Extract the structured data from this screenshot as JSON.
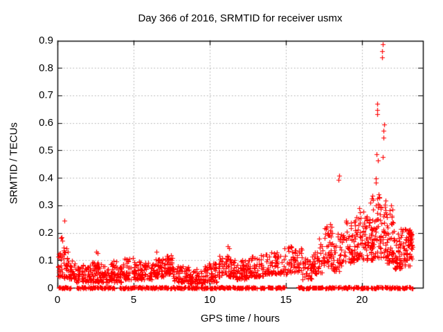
{
  "title": "Day 366 of 2016, SRMTID for receiver usmx",
  "xlabel": "GPS time / hours",
  "ylabel": "SRMTID / TECUs",
  "chart_data": {
    "type": "scatter",
    "title": "Day 366 of 2016, SRMTID for receiver usmx",
    "xlabel": "GPS time / hours",
    "ylabel": "SRMTID / TECUs",
    "series_name": "SRMTID",
    "marker": "plus-cross",
    "marker_color": "#ff0000",
    "marker_size_px": 7,
    "grid": "dotted",
    "grid_color": "#a8a8a8",
    "border_color": "#000000",
    "legend": "none",
    "xlim": [
      0,
      24
    ],
    "ylim": [
      0,
      0.9
    ],
    "xticks": [
      0,
      5,
      10,
      15,
      20
    ],
    "xtick_labels": [
      "0",
      "5",
      "10",
      "15",
      "20"
    ],
    "yticks": [
      0,
      0.1,
      0.2,
      0.3,
      0.4,
      0.5,
      0.6,
      0.7,
      0.8,
      0.9
    ],
    "ytick_labels": [
      "0",
      "0.1",
      "0.2",
      "0.3",
      "0.4",
      "0.5",
      "0.6",
      "0.7",
      "0.8",
      "0.9"
    ],
    "seed": 20163661,
    "highlight_points": [
      [
        0.45,
        0.245
      ],
      [
        0.28,
        0.185
      ],
      [
        0.33,
        0.172
      ],
      [
        2.55,
        0.132
      ],
      [
        2.62,
        0.125
      ],
      [
        6.5,
        0.131
      ],
      [
        11.2,
        0.152
      ],
      [
        11.28,
        0.143
      ],
      [
        15.3,
        0.152
      ],
      [
        17.2,
        0.178
      ],
      [
        17.9,
        0.232
      ],
      [
        18.02,
        0.222
      ],
      [
        18.5,
        0.408
      ],
      [
        18.47,
        0.393
      ],
      [
        19.8,
        0.29
      ],
      [
        19.85,
        0.275
      ],
      [
        20.3,
        0.26
      ],
      [
        20.55,
        0.31
      ],
      [
        20.62,
        0.325
      ],
      [
        20.7,
        0.335
      ],
      [
        20.9,
        0.398
      ],
      [
        20.93,
        0.383
      ],
      [
        20.95,
        0.487
      ],
      [
        20.98,
        0.648
      ],
      [
        21.0,
        0.67
      ],
      [
        21.01,
        0.631
      ],
      [
        21.05,
        0.464
      ],
      [
        21.1,
        0.34
      ],
      [
        21.15,
        0.33
      ],
      [
        21.32,
        0.839
      ],
      [
        21.33,
        0.861
      ],
      [
        21.35,
        0.887
      ],
      [
        21.38,
        0.476
      ],
      [
        21.4,
        0.571
      ],
      [
        21.42,
        0.547
      ],
      [
        21.45,
        0.595
      ],
      [
        21.5,
        0.302
      ],
      [
        21.55,
        0.318
      ],
      [
        21.9,
        0.3
      ],
      [
        22.0,
        0.285
      ],
      [
        22.15,
        0.072
      ],
      [
        22.2,
        0.068
      ]
    ],
    "cloud_envelope": [
      [
        0.05,
        0.3,
        0.04,
        0.19,
        25
      ],
      [
        0.3,
        0.7,
        0.035,
        0.15,
        30
      ],
      [
        0.7,
        1.2,
        0.03,
        0.1,
        35
      ],
      [
        1.2,
        2.2,
        0.02,
        0.085,
        70
      ],
      [
        2.2,
        2.7,
        0.02,
        0.1,
        40
      ],
      [
        2.7,
        3.6,
        0.02,
        0.09,
        60
      ],
      [
        3.6,
        4.4,
        0.02,
        0.1,
        55
      ],
      [
        4.4,
        5.2,
        0.03,
        0.11,
        55
      ],
      [
        5.2,
        6.2,
        0.03,
        0.1,
        65
      ],
      [
        6.2,
        7.0,
        0.04,
        0.11,
        55
      ],
      [
        7.0,
        7.6,
        0.05,
        0.12,
        45
      ],
      [
        7.6,
        8.6,
        0.02,
        0.08,
        60
      ],
      [
        8.6,
        9.6,
        0.015,
        0.07,
        60
      ],
      [
        9.6,
        10.6,
        0.02,
        0.09,
        60
      ],
      [
        10.6,
        11.6,
        0.04,
        0.12,
        65
      ],
      [
        11.6,
        12.6,
        0.03,
        0.11,
        65
      ],
      [
        12.6,
        13.6,
        0.04,
        0.12,
        60
      ],
      [
        13.6,
        14.9,
        0.05,
        0.13,
        75
      ],
      [
        14.9,
        16.1,
        0.05,
        0.15,
        60
      ],
      [
        16.1,
        16.7,
        0.03,
        0.11,
        35
      ],
      [
        16.7,
        17.5,
        0.05,
        0.16,
        50
      ],
      [
        17.5,
        18.1,
        0.07,
        0.23,
        45
      ],
      [
        18.1,
        18.7,
        0.06,
        0.2,
        40
      ],
      [
        18.7,
        19.5,
        0.09,
        0.25,
        55
      ],
      [
        19.5,
        20.1,
        0.1,
        0.28,
        50
      ],
      [
        20.1,
        20.7,
        0.1,
        0.26,
        55
      ],
      [
        20.7,
        21.6,
        0.11,
        0.33,
        80
      ],
      [
        21.6,
        22.1,
        0.09,
        0.3,
        50
      ],
      [
        22.1,
        22.6,
        0.07,
        0.22,
        45
      ],
      [
        22.6,
        23.3,
        0.08,
        0.22,
        55
      ],
      [
        23.0,
        23.28,
        0.15,
        0.21,
        25
      ]
    ],
    "zero_band_segments": [
      [
        0.1,
        0.88
      ],
      [
        1.25,
        1.45
      ],
      [
        1.52,
        1.92
      ],
      [
        2.02,
        2.55
      ],
      [
        2.6,
        2.95
      ],
      [
        3.05,
        3.5
      ],
      [
        3.58,
        3.76
      ],
      [
        4.1,
        4.52
      ],
      [
        4.6,
        5.12
      ],
      [
        5.2,
        5.62
      ],
      [
        5.7,
        5.95
      ],
      [
        6.02,
        6.6
      ],
      [
        6.68,
        7.3
      ],
      [
        7.42,
        7.52
      ],
      [
        7.6,
        8.05
      ],
      [
        8.1,
        8.45
      ],
      [
        8.55,
        9.3
      ],
      [
        9.42,
        9.9
      ],
      [
        10.0,
        10.42
      ],
      [
        10.52,
        11.4
      ],
      [
        11.5,
        12.22
      ],
      [
        12.3,
        12.62
      ],
      [
        12.72,
        13.1
      ],
      [
        13.3,
        13.62
      ],
      [
        13.8,
        14.2
      ],
      [
        14.3,
        14.95
      ],
      [
        15.8,
        16.22
      ],
      [
        16.3,
        16.62
      ],
      [
        16.72,
        17.45
      ],
      [
        17.6,
        18.3
      ],
      [
        18.42,
        18.58
      ],
      [
        18.7,
        19.3
      ],
      [
        19.42,
        19.82
      ],
      [
        19.9,
        20.42
      ],
      [
        20.6,
        21.12
      ],
      [
        21.2,
        21.38
      ],
      [
        21.5,
        22.02
      ],
      [
        22.1,
        22.52
      ],
      [
        22.62,
        23.02
      ],
      [
        23.1,
        23.32
      ]
    ]
  }
}
